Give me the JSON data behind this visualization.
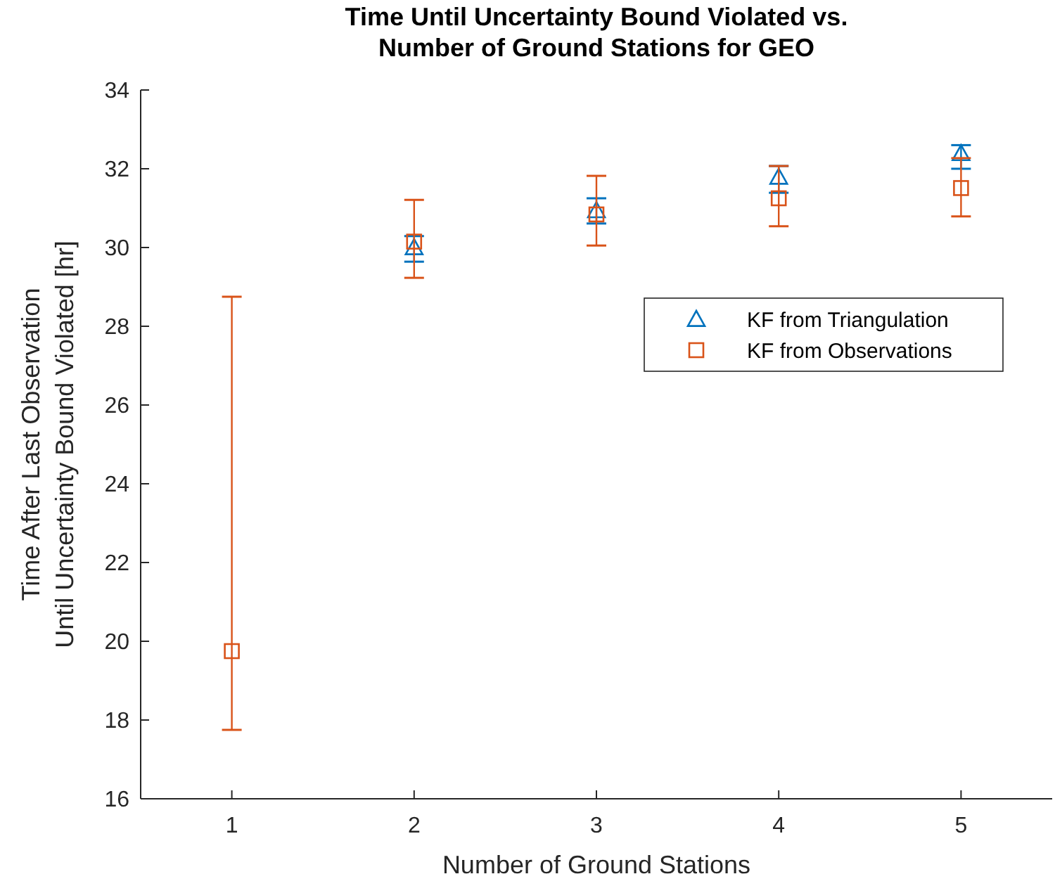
{
  "chart_data": {
    "type": "scatter",
    "title": "Time Until Uncertainty Bound Violated vs.\nNumber of Ground Stations for GEO",
    "xlabel": "Number of Ground Stations",
    "ylabel": "Time After Last Observation\nUntil Uncertainty Bound Violated [hr]",
    "xlim": [
      0.5,
      5.5
    ],
    "xticks": [
      1,
      2,
      3,
      4,
      5
    ],
    "ylim": [
      16,
      34
    ],
    "yticks": [
      16,
      18,
      20,
      22,
      24,
      26,
      28,
      30,
      32,
      34
    ],
    "grid": false,
    "legend": "right",
    "series": [
      {
        "name": "KF from Triangulation",
        "color": "#0072bd",
        "marker": "triangle",
        "x": [
          2,
          3,
          4,
          5
        ],
        "values": [
          30.0,
          30.94,
          31.79,
          32.39
        ],
        "errors": [
          [
            29.64,
            30.29
          ],
          [
            30.61,
            31.25
          ],
          [
            31.39,
            32.07
          ],
          [
            32.0,
            32.6
          ]
        ]
      },
      {
        "name": "KF from Observations",
        "color": "#d95319",
        "marker": "square",
        "x": [
          1,
          2,
          3,
          4,
          5
        ],
        "values": [
          19.75,
          30.15,
          30.84,
          31.25,
          31.51
        ],
        "errors": [
          [
            17.75,
            28.75
          ],
          [
            29.23,
            31.21
          ],
          [
            30.05,
            31.82
          ],
          [
            30.54,
            32.07
          ],
          [
            30.79,
            32.27
          ]
        ]
      }
    ]
  }
}
